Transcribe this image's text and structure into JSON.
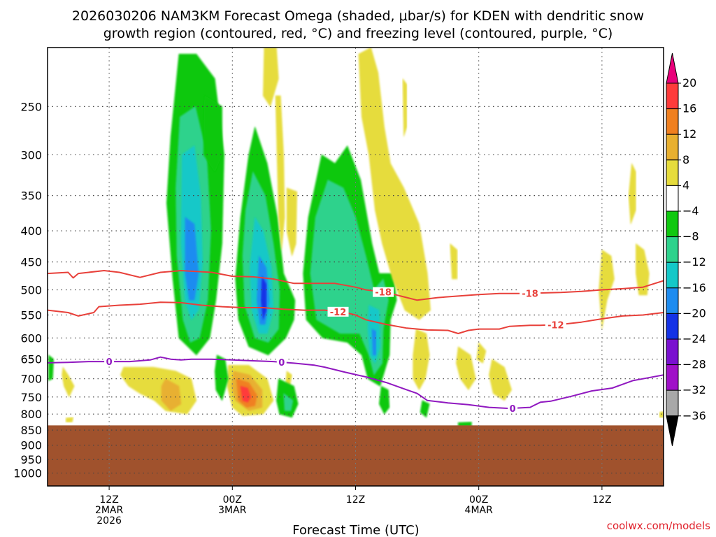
{
  "title": {
    "line1": "2026030206 NAM3KM Forecast Omega (shaded, μbar/s) for KDEN with dendritic snow",
    "line2": "growth region (contoured, red, °C) and freezing level (contoured, purple, °C)"
  },
  "credit": "coolwx.com/models",
  "chart_data": {
    "type": "heatmap",
    "title": "2026030206 NAM3KM Forecast Omega (shaded, μbar/s) for KDEN with dendritic snow growth region (contoured, red, °C) and freezing level (contoured, purple, °C)",
    "xlabel": "Forecast Time (UTC)",
    "ylabel": "",
    "x_range_hours_from_init": [
      0,
      60
    ],
    "y_range_mb": [
      1050,
      200
    ],
    "y_scale": "log-pressure",
    "grid": true,
    "x_ticks": [
      {
        "hour": 6,
        "lines": [
          "12Z",
          "2MAR",
          "2026"
        ]
      },
      {
        "hour": 18,
        "lines": [
          "00Z",
          "3MAR"
        ]
      },
      {
        "hour": 30,
        "lines": [
          "12Z"
        ]
      },
      {
        "hour": 42,
        "lines": [
          "00Z",
          "4MAR"
        ]
      },
      {
        "hour": 54,
        "lines": [
          "12Z"
        ]
      }
    ],
    "y_ticks": [
      250,
      300,
      350,
      400,
      450,
      500,
      550,
      600,
      650,
      700,
      750,
      800,
      850,
      900,
      950,
      1000
    ],
    "colorbar": {
      "labels": [
        "20",
        "16",
        "12",
        "8",
        "4",
        "−4",
        "−8",
        "−12",
        "−16",
        "−20",
        "−24",
        "−28",
        "−32",
        "−36"
      ],
      "bins": [
        {
          "range": ">20",
          "color": "#e8007a"
        },
        {
          "range": "16 to 20",
          "color": "#ff3b3b"
        },
        {
          "range": "12 to 16",
          "color": "#f08020"
        },
        {
          "range": "8 to 12",
          "color": "#e8b030"
        },
        {
          "range": "4 to 8",
          "color": "#e6dc3c"
        },
        {
          "range": "-4 to 4",
          "color": "#ffffff"
        },
        {
          "range": "-8 to -4",
          "color": "#10c810"
        },
        {
          "range": "-12 to -8",
          "color": "#2ed28c"
        },
        {
          "range": "-16 to -12",
          "color": "#14c8c8"
        },
        {
          "range": "-20 to -16",
          "color": "#1e8cf0"
        },
        {
          "range": "-24 to -20",
          "color": "#1432e6"
        },
        {
          "range": "-28 to -24",
          "color": "#7a10d0"
        },
        {
          "range": "-32 to -28",
          "color": "#a010c8"
        },
        {
          "range": "-36 to -32",
          "color": "#a8a8a8"
        },
        {
          "range": "<-36",
          "color": "#000000"
        }
      ]
    },
    "terrain": {
      "surface_mb": 835,
      "color": "#a0522d"
    },
    "contours": [
      {
        "name": "-18",
        "field": "temperature",
        "color": "#e8403a",
        "label_hours": [
          32.7,
          47.0
        ],
        "points": [
          [
            0,
            470
          ],
          [
            2,
            468
          ],
          [
            2.5,
            478
          ],
          [
            3,
            470
          ],
          [
            5.5,
            465
          ],
          [
            7,
            468
          ],
          [
            9,
            477
          ],
          [
            11,
            468
          ],
          [
            13,
            465
          ],
          [
            16,
            468
          ],
          [
            18,
            475
          ],
          [
            20,
            476
          ],
          [
            22,
            480
          ],
          [
            24,
            488
          ],
          [
            26,
            488
          ],
          [
            28,
            488
          ],
          [
            30,
            495
          ],
          [
            31,
            500
          ],
          [
            33,
            505
          ],
          [
            35,
            515
          ],
          [
            36,
            520
          ],
          [
            38,
            515
          ],
          [
            40,
            512
          ],
          [
            42,
            509
          ],
          [
            44,
            507
          ],
          [
            46,
            507
          ],
          [
            48,
            506
          ],
          [
            50,
            505
          ],
          [
            52,
            503
          ],
          [
            54,
            500
          ],
          [
            56,
            498
          ],
          [
            58,
            495
          ],
          [
            60,
            483
          ]
        ]
      },
      {
        "name": "-12",
        "field": "temperature",
        "color": "#e8403a",
        "label_hours": [
          28.3,
          49.5
        ],
        "points": [
          [
            0,
            540
          ],
          [
            2,
            545
          ],
          [
            3,
            552
          ],
          [
            4.5,
            545
          ],
          [
            5,
            533
          ],
          [
            7,
            530
          ],
          [
            9,
            528
          ],
          [
            11,
            524
          ],
          [
            13,
            525
          ],
          [
            15,
            530
          ],
          [
            17,
            533
          ],
          [
            19,
            535
          ],
          [
            21,
            535
          ],
          [
            23,
            538
          ],
          [
            25,
            540
          ],
          [
            27,
            540
          ],
          [
            29,
            545
          ],
          [
            30,
            550
          ],
          [
            31,
            560
          ],
          [
            33,
            570
          ],
          [
            35,
            578
          ],
          [
            37,
            582
          ],
          [
            39,
            583
          ],
          [
            40,
            590
          ],
          [
            41,
            583
          ],
          [
            42,
            580
          ],
          [
            44,
            580
          ],
          [
            45,
            574
          ],
          [
            47,
            572
          ],
          [
            48,
            572
          ],
          [
            50,
            570
          ],
          [
            52,
            565
          ],
          [
            54,
            558
          ],
          [
            56,
            552
          ],
          [
            58,
            550
          ],
          [
            60,
            545
          ]
        ]
      },
      {
        "name": "0",
        "field": "temperature",
        "color": "#9018c0",
        "label_hours": [
          6,
          22.8,
          45.3
        ],
        "points": [
          [
            0,
            659
          ],
          [
            2,
            658
          ],
          [
            4,
            656
          ],
          [
            6,
            656
          ],
          [
            8,
            656
          ],
          [
            10,
            652
          ],
          [
            11,
            645
          ],
          [
            12,
            650
          ],
          [
            13,
            652
          ],
          [
            14,
            650
          ],
          [
            16,
            650
          ],
          [
            18,
            652
          ],
          [
            20,
            654
          ],
          [
            22,
            656
          ],
          [
            24,
            660
          ],
          [
            26,
            665
          ],
          [
            27,
            670
          ],
          [
            29,
            683
          ],
          [
            31,
            695
          ],
          [
            33,
            710
          ],
          [
            35,
            730
          ],
          [
            36,
            740
          ],
          [
            37,
            760
          ],
          [
            39,
            767
          ],
          [
            41,
            772
          ],
          [
            43,
            780
          ],
          [
            45,
            783
          ],
          [
            47,
            780
          ],
          [
            48,
            765
          ],
          [
            49,
            762
          ],
          [
            51,
            748
          ],
          [
            53,
            733
          ],
          [
            55,
            725
          ],
          [
            56,
            715
          ],
          [
            57,
            705
          ],
          [
            58,
            700
          ],
          [
            60,
            690
          ]
        ]
      }
    ],
    "features": [
      {
        "hours": [
          11.5,
          17.2
        ],
        "mb": [
          210,
          630
        ],
        "min_omega": "-20 to -16",
        "note": "upward motion column"
      },
      {
        "hours": [
          18.5,
          24.0
        ],
        "mb": [
          270,
          640
        ],
        "min_omega": "-24 to -20",
        "note": "strongest upward motion near 510 mb"
      },
      {
        "hours": [
          25.0,
          31.5
        ],
        "mb": [
          290,
          720
        ],
        "min_omega": "-16 to -12"
      },
      {
        "hours": [
          30.0,
          33.0
        ],
        "mb": [
          590,
          720
        ],
        "min_omega": "-20 to -16"
      },
      {
        "hours": [
          18.0,
          21.5
        ],
        "mb": [
          690,
          800
        ],
        "max_omega": "16 to 20",
        "note": "downward motion maximum near 730 mb"
      },
      {
        "hours": [
          10.0,
          13.5
        ],
        "mb": [
          690,
          790
        ],
        "max_omega": "8 to 12"
      }
    ]
  }
}
